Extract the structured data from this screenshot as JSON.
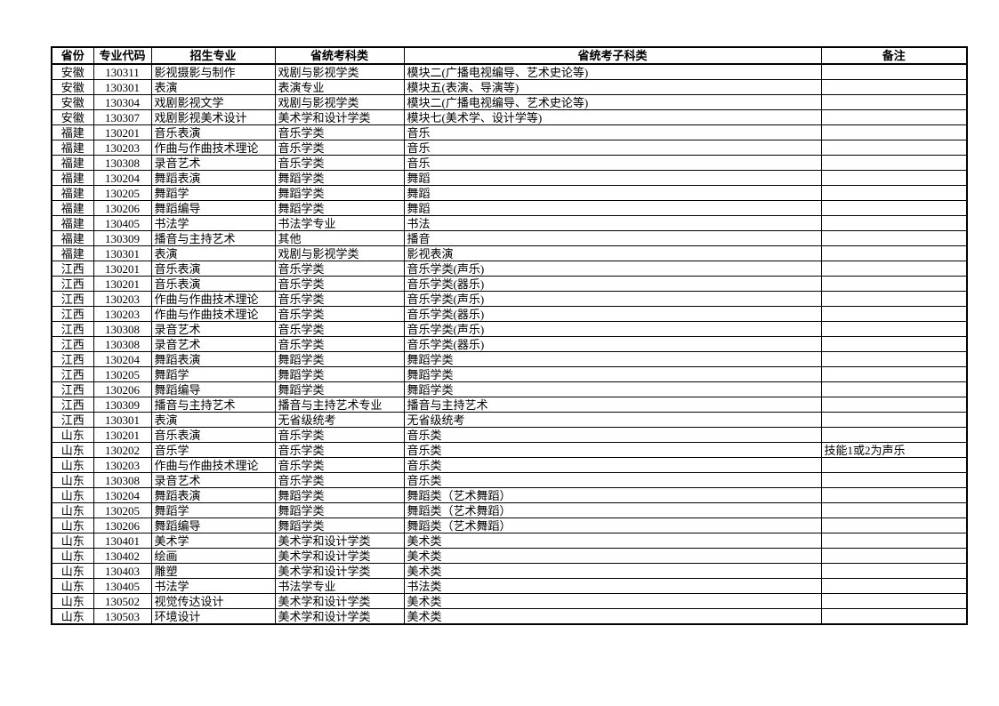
{
  "page": {
    "background_color": "#ffffff",
    "border_color": "#000000",
    "text_color": "#000000"
  },
  "table": {
    "columns": [
      {
        "key": "province",
        "label": "省份"
      },
      {
        "key": "major-code",
        "label": "专业代码"
      },
      {
        "key": "enroll-major",
        "label": "招生专业"
      },
      {
        "key": "exam-category",
        "label": "省统考科类"
      },
      {
        "key": "exam-subcategory",
        "label": "省统考子科类"
      },
      {
        "key": "remark",
        "label": "备注"
      }
    ],
    "rows": [
      [
        "安徽",
        "130311",
        "影视摄影与制作",
        "戏剧与影视学类",
        "模块二(广播电视编导、艺术史论等)",
        ""
      ],
      [
        "安徽",
        "130301",
        "表演",
        "表演专业",
        "模块五(表演、导演等)",
        ""
      ],
      [
        "安徽",
        "130304",
        "戏剧影视文学",
        "戏剧与影视学类",
        "模块二(广播电视编导、艺术史论等)",
        ""
      ],
      [
        "安徽",
        "130307",
        "戏剧影视美术设计",
        "美术学和设计学类",
        "模块七(美术学、设计学等)",
        ""
      ],
      [
        "福建",
        "130201",
        "音乐表演",
        "音乐学类",
        "音乐",
        ""
      ],
      [
        "福建",
        "130203",
        "作曲与作曲技术理论",
        "音乐学类",
        "音乐",
        ""
      ],
      [
        "福建",
        "130308",
        "录音艺术",
        "音乐学类",
        "音乐",
        ""
      ],
      [
        "福建",
        "130204",
        "舞蹈表演",
        "舞蹈学类",
        "舞蹈",
        ""
      ],
      [
        "福建",
        "130205",
        "舞蹈学",
        "舞蹈学类",
        "舞蹈",
        ""
      ],
      [
        "福建",
        "130206",
        "舞蹈编导",
        "舞蹈学类",
        "舞蹈",
        ""
      ],
      [
        "福建",
        "130405",
        "书法学",
        "书法学专业",
        "书法",
        ""
      ],
      [
        "福建",
        "130309",
        "播音与主持艺术",
        "其他",
        "播音",
        ""
      ],
      [
        "福建",
        "130301",
        "表演",
        "戏剧与影视学类",
        "影视表演",
        ""
      ],
      [
        "江西",
        "130201",
        "音乐表演",
        "音乐学类",
        "音乐学类(声乐)",
        ""
      ],
      [
        "江西",
        "130201",
        "音乐表演",
        "音乐学类",
        "音乐学类(器乐)",
        ""
      ],
      [
        "江西",
        "130203",
        "作曲与作曲技术理论",
        "音乐学类",
        "音乐学类(声乐)",
        ""
      ],
      [
        "江西",
        "130203",
        "作曲与作曲技术理论",
        "音乐学类",
        "音乐学类(器乐)",
        ""
      ],
      [
        "江西",
        "130308",
        "录音艺术",
        "音乐学类",
        "音乐学类(声乐)",
        ""
      ],
      [
        "江西",
        "130308",
        "录音艺术",
        "音乐学类",
        "音乐学类(器乐)",
        ""
      ],
      [
        "江西",
        "130204",
        "舞蹈表演",
        "舞蹈学类",
        "舞蹈学类",
        ""
      ],
      [
        "江西",
        "130205",
        "舞蹈学",
        "舞蹈学类",
        "舞蹈学类",
        ""
      ],
      [
        "江西",
        "130206",
        "舞蹈编导",
        "舞蹈学类",
        "舞蹈学类",
        ""
      ],
      [
        "江西",
        "130309",
        "播音与主持艺术",
        "播音与主持艺术专业",
        "播音与主持艺术",
        ""
      ],
      [
        "江西",
        "130301",
        "表演",
        "无省级统考",
        "无省级统考",
        ""
      ],
      [
        "山东",
        "130201",
        "音乐表演",
        "音乐学类",
        "音乐类",
        ""
      ],
      [
        "山东",
        "130202",
        "音乐学",
        "音乐学类",
        "音乐类",
        "技能1或2为声乐"
      ],
      [
        "山东",
        "130203",
        "作曲与作曲技术理论",
        "音乐学类",
        "音乐类",
        ""
      ],
      [
        "山东",
        "130308",
        "录音艺术",
        "音乐学类",
        "音乐类",
        ""
      ],
      [
        "山东",
        "130204",
        "舞蹈表演",
        "舞蹈学类",
        "舞蹈类（艺术舞蹈）",
        ""
      ],
      [
        "山东",
        "130205",
        "舞蹈学",
        "舞蹈学类",
        "舞蹈类（艺术舞蹈）",
        ""
      ],
      [
        "山东",
        "130206",
        "舞蹈编导",
        "舞蹈学类",
        "舞蹈类（艺术舞蹈）",
        ""
      ],
      [
        "山东",
        "130401",
        "美术学",
        "美术学和设计学类",
        "美术类",
        ""
      ],
      [
        "山东",
        "130402",
        "绘画",
        "美术学和设计学类",
        "美术类",
        ""
      ],
      [
        "山东",
        "130403",
        "雕塑",
        "美术学和设计学类",
        "美术类",
        ""
      ],
      [
        "山东",
        "130405",
        "书法学",
        "书法学专业",
        "书法类",
        ""
      ],
      [
        "山东",
        "130502",
        "视觉传达设计",
        "美术学和设计学类",
        "美术类",
        ""
      ],
      [
        "山东",
        "130503",
        "环境设计",
        "美术学和设计学类",
        "美术类",
        ""
      ]
    ]
  }
}
